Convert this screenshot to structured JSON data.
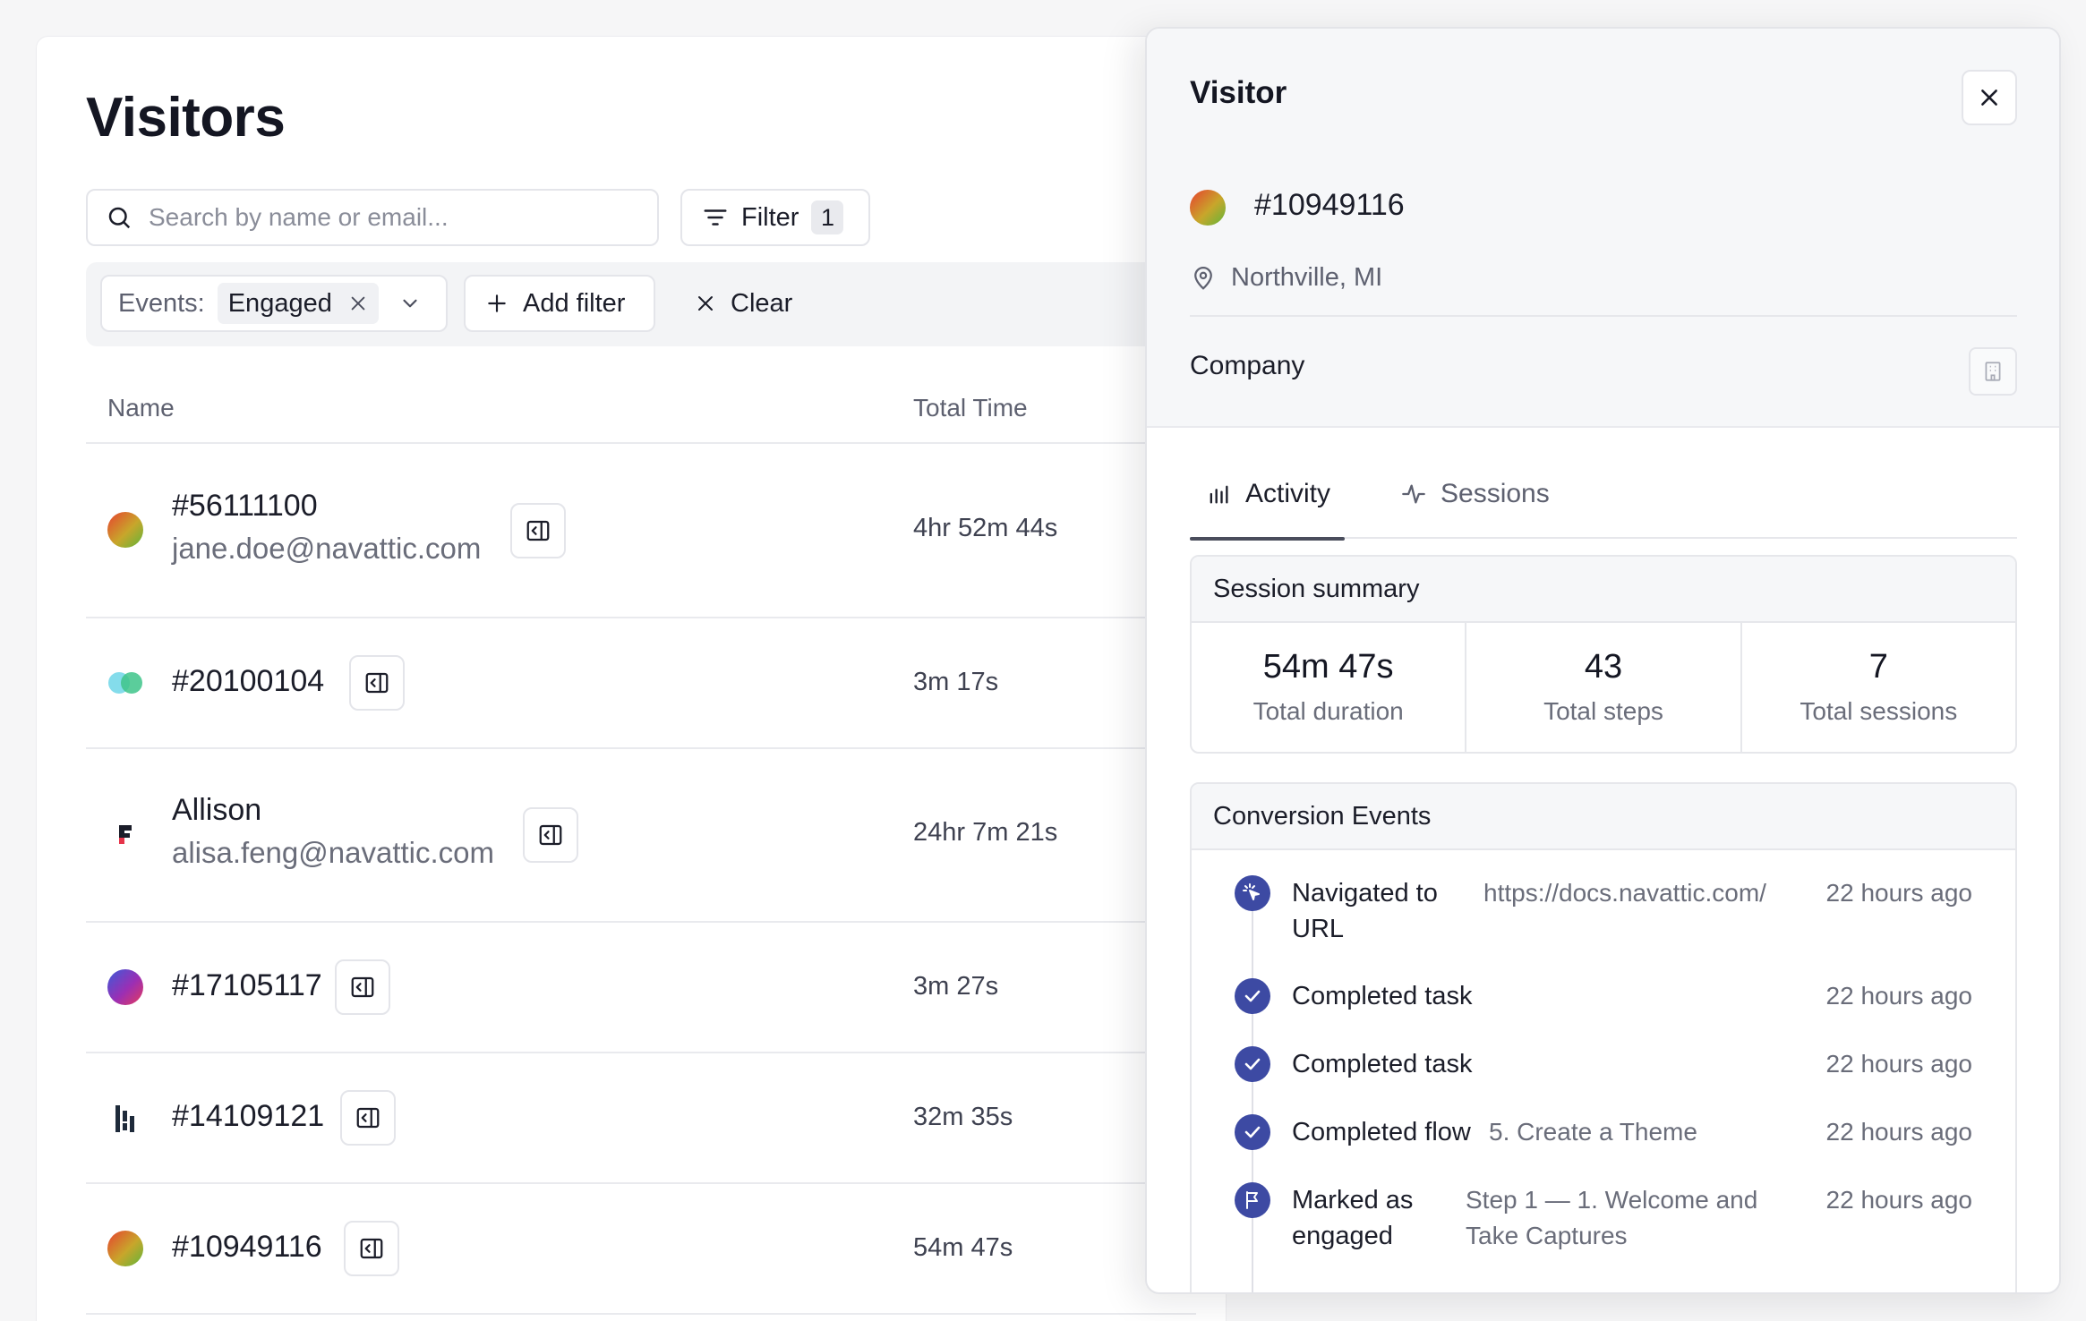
{
  "page": {
    "title": "Visitors",
    "search_placeholder": "Search by name or email...",
    "filter_label": "Filter",
    "filter_count": "1",
    "active_filter": {
      "key": "Events:",
      "value": "Engaged"
    },
    "add_filter_label": "Add filter",
    "clear_label": "Clear",
    "columns": [
      "Name",
      "Total Time"
    ]
  },
  "visitors": [
    {
      "name": "#56111100",
      "email": "jane.doe@navattic.com",
      "total_time": "4hr 52m 44s",
      "avatar": "gradient-orange-green"
    },
    {
      "name": "#20100104",
      "email": "",
      "total_time": "3m 17s",
      "avatar": "overlapping-circles-logo"
    },
    {
      "name": "Allison",
      "email": "alisa.feng@navattic.com",
      "total_time": "24hr 7m 21s",
      "avatar": "f-logo"
    },
    {
      "name": "#17105117",
      "email": "",
      "total_time": "3m 27s",
      "avatar": "gradient-blue-purple"
    },
    {
      "name": "#14109121",
      "email": "",
      "total_time": "32m 35s",
      "avatar": "bars-logo"
    },
    {
      "name": "#10949116",
      "email": "",
      "total_time": "54m 47s",
      "avatar": "gradient-orange-green"
    }
  ],
  "drawer": {
    "title": "Visitor",
    "visitor_id": "#10949116",
    "location": "Northville, MI",
    "company_label": "Company",
    "tabs": [
      {
        "label": "Activity",
        "icon": "bar-chart-icon",
        "active": true
      },
      {
        "label": "Sessions",
        "icon": "activity-pulse-icon",
        "active": false
      }
    ],
    "summary": {
      "title": "Session summary",
      "stats": [
        {
          "value": "54m 47s",
          "label": "Total duration"
        },
        {
          "value": "43",
          "label": "Total steps"
        },
        {
          "value": "7",
          "label": "Total sessions"
        }
      ]
    },
    "conversion": {
      "title": "Conversion Events",
      "events": [
        {
          "title": "Navigated to URL",
          "detail": "https://docs.navattic.com/",
          "time": "22 hours ago",
          "icon": "cursor-click-icon"
        },
        {
          "title": "Completed task",
          "detail": "",
          "time": "22 hours ago",
          "icon": "check-icon"
        },
        {
          "title": "Completed task",
          "detail": "",
          "time": "22 hours ago",
          "icon": "check-icon"
        },
        {
          "title": "Completed flow",
          "detail": "5. Create a Theme",
          "time": "22 hours ago",
          "icon": "check-icon"
        },
        {
          "title": "Marked as engaged",
          "detail": "Step 1 — 1. Welcome and Take Captures",
          "time": "22 hours ago",
          "icon": "flag-icon"
        }
      ]
    }
  },
  "colors": {
    "accent": "#3d4aa3",
    "border": "#e4e5ea",
    "muted_text": "#6a6d7a"
  }
}
